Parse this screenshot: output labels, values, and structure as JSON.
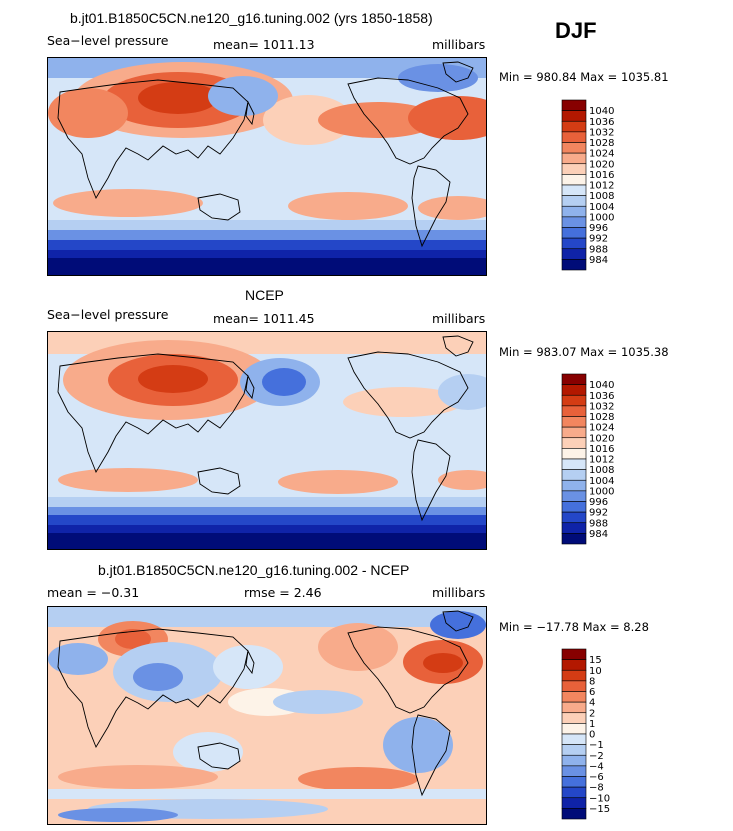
{
  "season_label": "DJF",
  "panels": [
    {
      "title": "b.jt01.B1850C5CN.ne120_g16.tuning.002 (yrs 1850-1858)",
      "sub_left": "Sea−level pressure",
      "sub_center": "mean= 1011.13",
      "sub_right": "millibars",
      "minmax": "Min = 980.84 Max = 1035.81"
    },
    {
      "title": "NCEP",
      "sub_left": "Sea−level pressure",
      "sub_center": "mean= 1011.45",
      "sub_right": "millibars",
      "minmax": "Min = 983.07 Max = 1035.38"
    },
    {
      "title": "b.jt01.B1850C5CN.ne120_g16.tuning.002 - NCEP",
      "sub_left": "mean =   −0.31",
      "sub_center": "rmse =    2.46",
      "sub_right": "millibars",
      "minmax": "Min = −17.78 Max =    8.28"
    }
  ],
  "chart_data": [
    {
      "type": "heatmap",
      "title": "b.jt01.B1850C5CN.ne120_g16.tuning.002 (yrs 1850-1858)",
      "variable": "Sea-level pressure",
      "units": "millibars",
      "mean": 1011.13,
      "min": 980.84,
      "max": 1035.81,
      "levels": [
        "1040",
        "1036",
        "1032",
        "1028",
        "1024",
        "1020",
        "1016",
        "1012",
        "1008",
        "1004",
        "1000",
        "996",
        "992",
        "988",
        "984"
      ],
      "colors": [
        "#870000",
        "#b31800",
        "#d43c14",
        "#e8613a",
        "#f2865f",
        "#f8ab8b",
        "#fcd0b8",
        "#fdf3e8",
        "#d6e6f8",
        "#b5cff2",
        "#8fb2ec",
        "#6a91e4",
        "#4570dc",
        "#2447c8",
        "#0f23a8",
        "#000c78"
      ]
    },
    {
      "type": "heatmap",
      "title": "NCEP",
      "variable": "Sea-level pressure",
      "units": "millibars",
      "mean": 1011.45,
      "min": 983.07,
      "max": 1035.38,
      "levels": [
        "1040",
        "1036",
        "1032",
        "1028",
        "1024",
        "1020",
        "1016",
        "1012",
        "1008",
        "1004",
        "1000",
        "996",
        "992",
        "988",
        "984"
      ],
      "colors": [
        "#870000",
        "#b31800",
        "#d43c14",
        "#e8613a",
        "#f2865f",
        "#f8ab8b",
        "#fcd0b8",
        "#fdf3e8",
        "#d6e6f8",
        "#b5cff2",
        "#8fb2ec",
        "#6a91e4",
        "#4570dc",
        "#2447c8",
        "#0f23a8",
        "#000c78"
      ]
    },
    {
      "type": "heatmap",
      "title": "b.jt01.B1850C5CN.ne120_g16.tuning.002 - NCEP",
      "units": "millibars",
      "mean": -0.31,
      "rmse": 2.46,
      "min": -17.78,
      "max": 8.28,
      "levels": [
        "15",
        "10",
        "8",
        "6",
        "4",
        "2",
        "1",
        "0",
        "−1",
        "−2",
        "−4",
        "−6",
        "−8",
        "−10",
        "−15"
      ],
      "colors": [
        "#870000",
        "#b31800",
        "#d43c14",
        "#e8613a",
        "#f2865f",
        "#f8ab8b",
        "#fcd0b8",
        "#fdf3e8",
        "#d6e6f8",
        "#b5cff2",
        "#8fb2ec",
        "#6a91e4",
        "#4570dc",
        "#2447c8",
        "#0f23a8",
        "#000c78"
      ]
    }
  ]
}
